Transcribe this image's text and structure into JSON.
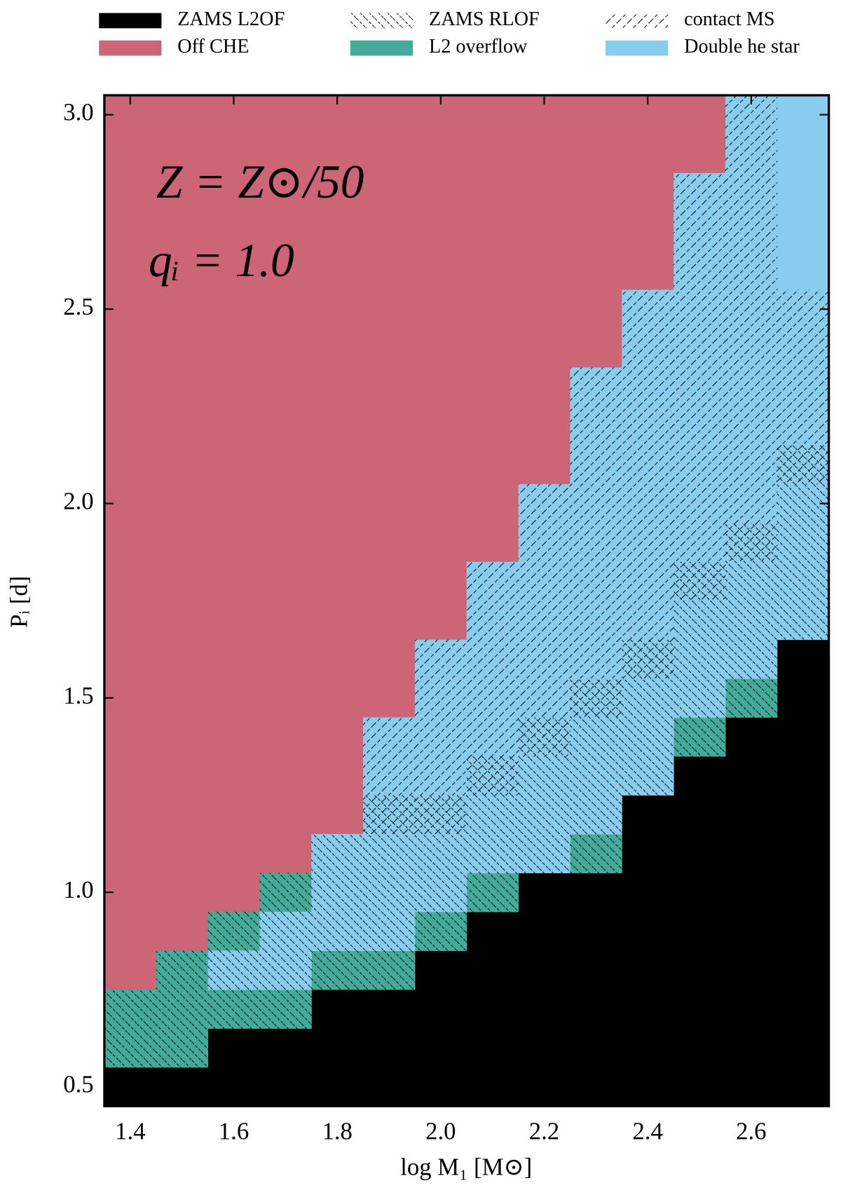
{
  "chart_data": {
    "type": "cell-grid",
    "xlabel": "log M₁ [M⊙]",
    "ylabel": "Pᵢ [d]",
    "annotations": [
      "Z = Z⊙/50",
      "qᵢ = 1.0"
    ],
    "xlim": [
      1.35,
      2.75
    ],
    "ylim": [
      0.45,
      3.05
    ],
    "xticks": [
      1.4,
      1.6,
      1.8,
      {
        "value": 2.0,
        "label": "2.0"
      },
      2.2,
      2.4,
      2.6
    ],
    "yticks": [
      {
        "value": 0.5,
        "label": "0.5"
      },
      {
        "value": 1.0,
        "label": "1.0"
      },
      1.5,
      {
        "value": 2.0,
        "label": "2.0"
      },
      2.5,
      {
        "value": 3.0,
        "label": "3.0"
      }
    ],
    "legend": "top",
    "series": [
      {
        "name": "ZAMS L2OF",
        "color": "#000000",
        "x": [
          1.4,
          1.5,
          1.6,
          1.7,
          1.8,
          1.9,
          2.0,
          2.1,
          2.2,
          2.3,
          2.4,
          2.5,
          2.6,
          2.7
        ],
        "y_from": [
          0.5,
          0.5,
          0.5,
          0.5,
          0.5,
          0.5,
          0.5,
          0.5,
          0.5,
          0.5,
          0.5,
          0.5,
          0.5,
          0.5
        ],
        "y_to": [
          0.5,
          0.5,
          0.6,
          0.6,
          0.7,
          0.7,
          0.8,
          0.9,
          1.0,
          1.0,
          1.2,
          1.3,
          1.4,
          1.6
        ]
      },
      {
        "name": "ZAMS RLOF",
        "hatch": "\\",
        "x": [
          1.4,
          1.5,
          1.6,
          1.7,
          1.8,
          1.9,
          2.0,
          2.1,
          2.2,
          2.3,
          2.4,
          2.5,
          2.6,
          2.7
        ],
        "y_from": [
          0.6,
          0.6,
          0.7,
          0.7,
          0.8,
          0.8,
          0.9,
          1.0,
          1.1,
          1.1,
          1.3,
          1.4,
          1.5,
          1.7
        ],
        "y_to": [
          0.7,
          0.8,
          0.9,
          1.0,
          1.1,
          1.2,
          1.2,
          1.3,
          1.4,
          1.5,
          1.6,
          1.8,
          1.9,
          2.1
        ]
      },
      {
        "name": "contact MS",
        "hatch": "/",
        "x": [
          1.9,
          2.0,
          2.1,
          2.2,
          2.3,
          2.4,
          2.5,
          2.6,
          2.7
        ],
        "y_from": [
          1.2,
          1.2,
          1.3,
          1.4,
          1.5,
          1.6,
          1.8,
          1.9,
          2.1
        ],
        "y_to": [
          1.4,
          1.6,
          1.8,
          2.0,
          2.3,
          2.5,
          2.8,
          3.0,
          2.5
        ]
      },
      {
        "name": "Off CHE",
        "color": "#cc6677",
        "x": [
          1.4,
          1.5,
          1.6,
          1.7,
          1.8,
          1.9,
          2.0,
          2.1,
          2.2,
          2.3,
          2.4,
          2.5
        ],
        "y_from": [
          0.8,
          0.9,
          1.0,
          1.1,
          1.2,
          1.5,
          1.7,
          1.9,
          2.1,
          2.4,
          2.6,
          2.9
        ],
        "y_to": [
          3.0,
          3.0,
          3.0,
          3.0,
          3.0,
          3.0,
          3.0,
          3.0,
          3.0,
          3.0,
          3.0,
          3.0
        ]
      },
      {
        "name": "L2 overflow",
        "color": "#44aa99",
        "x": [
          1.4,
          1.5,
          1.6,
          1.6,
          1.7,
          1.7,
          1.8,
          1.9,
          2.0,
          2.1,
          2.3,
          2.5,
          2.6
        ],
        "y_from": [
          0.6,
          0.6,
          0.7,
          0.9,
          0.7,
          1.0,
          0.8,
          0.8,
          0.9,
          1.0,
          1.1,
          1.4,
          1.5
        ],
        "y_to": [
          0.7,
          0.8,
          0.7,
          0.9,
          0.7,
          1.0,
          0.8,
          0.8,
          0.9,
          1.0,
          1.1,
          1.4,
          1.5
        ]
      },
      {
        "name": "Double he star",
        "color": "#88ccee",
        "x": [
          1.6,
          1.7,
          1.8,
          1.9,
          2.0,
          2.1,
          2.2,
          2.3,
          2.4,
          2.5,
          2.6,
          2.7
        ],
        "y_from": [
          0.8,
          0.8,
          0.9,
          0.9,
          1.0,
          1.1,
          1.1,
          1.2,
          1.3,
          1.5,
          1.6,
          1.7
        ],
        "y_to": [
          0.8,
          0.9,
          1.1,
          1.4,
          1.6,
          1.8,
          2.0,
          2.3,
          2.5,
          2.8,
          3.0,
          3.0
        ]
      }
    ]
  }
}
